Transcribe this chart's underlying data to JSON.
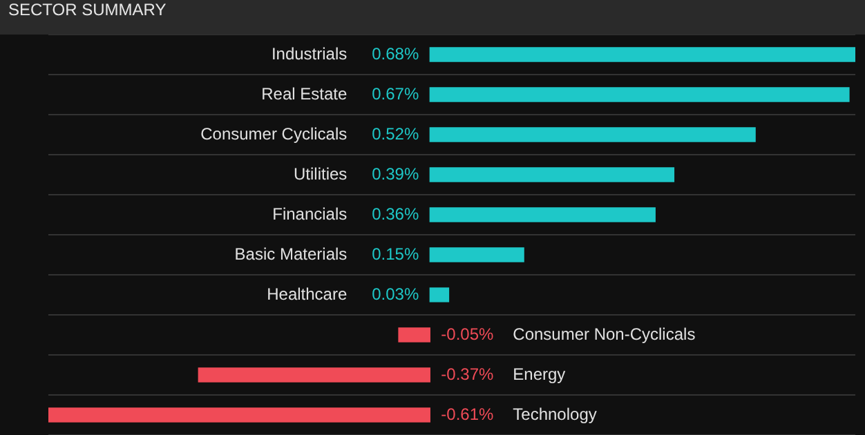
{
  "chart_data": {
    "type": "bar",
    "orientation": "horizontal",
    "title": "SECTOR SUMMARY",
    "categories": [
      "Industrials",
      "Real Estate",
      "Consumer Cyclicals",
      "Utilities",
      "Financials",
      "Basic Materials",
      "Healthcare",
      "Consumer Non-Cyclicals",
      "Energy",
      "Technology"
    ],
    "values": [
      0.68,
      0.67,
      0.52,
      0.39,
      0.36,
      0.15,
      0.03,
      -0.05,
      -0.37,
      -0.61
    ],
    "value_labels": [
      "0.68%",
      "0.67%",
      "0.52%",
      "0.39%",
      "0.36%",
      "0.15%",
      "0.03%",
      "-0.05%",
      "-0.37%",
      "-0.61%"
    ],
    "colors": [
      "#1ec8c8",
      "#1ec8c8",
      "#1ec8c8",
      "#1ec8c8",
      "#1ec8c8",
      "#1ec8c8",
      "#1ec8c8",
      "#f04b57",
      "#f04b57",
      "#f04b57"
    ],
    "grid": "y",
    "legend": false
  }
}
